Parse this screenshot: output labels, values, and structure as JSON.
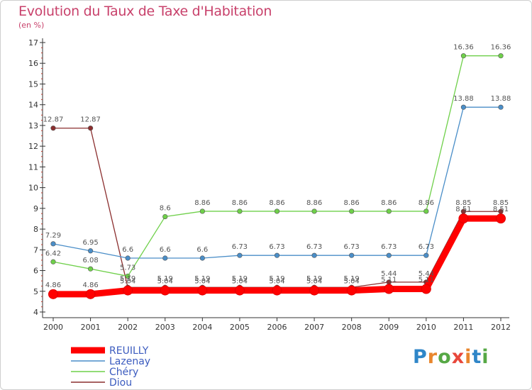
{
  "header": {
    "title": "Evolution du Taux de Taxe d'Habitation",
    "subtitle": "(en %)"
  },
  "logo": {
    "text": "Proxiti"
  },
  "chart_data": {
    "type": "line",
    "title": "Evolution du Taux de Taxe d'Habitation",
    "subtitle": "(en %)",
    "ylim": [
      4,
      17
    ],
    "yticks": [
      4,
      5,
      6,
      7,
      8,
      9,
      10,
      11,
      12,
      13,
      14,
      15,
      16,
      17
    ],
    "x": [
      "2000",
      "2001",
      "2002",
      "2003",
      "2004",
      "2005",
      "2006",
      "2007",
      "2008",
      "2009",
      "2010",
      "2011",
      "2012"
    ],
    "legend_position": "bottom-left",
    "grid": false,
    "series": [
      {
        "name": "REUILLY",
        "color": "#ff0000",
        "emphasis": true,
        "values": [
          4.86,
          4.86,
          5.04,
          5.04,
          5.04,
          5.04,
          5.04,
          5.04,
          5.04,
          5.11,
          5.11,
          8.51,
          8.51
        ]
      },
      {
        "name": "Lazenay",
        "color": "#4a8ec8",
        "values": [
          7.29,
          6.95,
          6.6,
          6.6,
          6.6,
          6.73,
          6.73,
          6.73,
          6.73,
          6.73,
          6.73,
          13.88,
          13.88
        ]
      },
      {
        "name": "Chéry",
        "color": "#6fd04a",
        "values": [
          6.42,
          6.08,
          5.73,
          8.6,
          8.86,
          8.86,
          8.86,
          8.86,
          8.86,
          8.86,
          8.86,
          16.36,
          16.36
        ]
      },
      {
        "name": "Diou",
        "color": "#8b2e2e",
        "values": [
          12.87,
          12.87,
          5.19,
          5.19,
          5.19,
          5.19,
          5.19,
          5.19,
          5.19,
          5.44,
          5.44,
          8.85,
          8.85
        ]
      }
    ]
  }
}
